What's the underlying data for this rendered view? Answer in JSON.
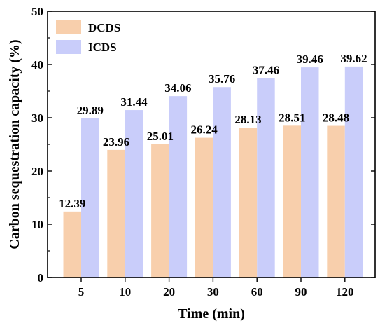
{
  "chart_data": {
    "type": "bar",
    "categories": [
      "5",
      "10",
      "20",
      "30",
      "60",
      "90",
      "120"
    ],
    "series": [
      {
        "name": "DCDS",
        "values": [
          12.39,
          23.96,
          25.01,
          26.24,
          28.13,
          28.51,
          28.48
        ],
        "color": "#f8cfac"
      },
      {
        "name": "ICDS",
        "values": [
          29.89,
          31.44,
          34.06,
          35.76,
          37.46,
          39.46,
          39.62
        ],
        "color": "#c9cdfa"
      }
    ],
    "xlabel": "Time (min)",
    "ylabel": "Carbon sequestration capacity (%)",
    "ylim": [
      0,
      50
    ],
    "yticks": [
      0,
      10,
      20,
      30,
      40,
      50
    ],
    "legend_position": "top-left",
    "grid": false
  }
}
